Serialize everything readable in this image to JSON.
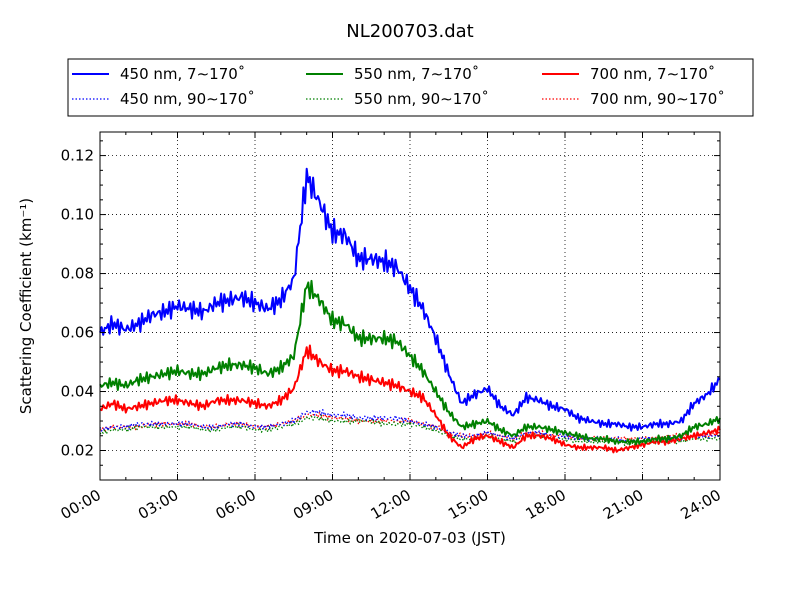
{
  "chart_data": {
    "type": "line",
    "title": "NL200703.dat",
    "xlabel": "Time on 2020-07-03 (JST)",
    "ylabel": "Scattering Coefficient (km⁻¹)",
    "xlim": [
      "00:00",
      "24:00"
    ],
    "ylim": [
      0.01,
      0.128
    ],
    "x_ticks": [
      "00:00",
      "03:00",
      "06:00",
      "09:00",
      "12:00",
      "15:00",
      "18:00",
      "21:00",
      "24:00"
    ],
    "y_ticks": [
      "0.02",
      "0.04",
      "0.06",
      "0.08",
      "0.10",
      "0.12"
    ],
    "grid": true,
    "legend_position": "top",
    "x": [
      "00:00",
      "00:30",
      "01:00",
      "01:30",
      "02:00",
      "02:30",
      "03:00",
      "03:30",
      "04:00",
      "04:30",
      "05:00",
      "05:30",
      "06:00",
      "06:30",
      "07:00",
      "07:30",
      "08:00",
      "08:30",
      "09:00",
      "09:30",
      "10:00",
      "10:30",
      "11:00",
      "11:30",
      "12:00",
      "12:30",
      "13:00",
      "13:30",
      "14:00",
      "14:30",
      "15:00",
      "15:30",
      "16:00",
      "16:30",
      "17:00",
      "17:30",
      "18:00",
      "18:30",
      "19:00",
      "19:30",
      "20:00",
      "20:30",
      "21:00",
      "21:30",
      "22:00",
      "22:30",
      "23:00",
      "23:30",
      "24:00"
    ],
    "series": [
      {
        "name": "450 nm, 7∼170˚",
        "color": "#0000ff",
        "style": "solid",
        "values": [
          0.06,
          0.063,
          0.061,
          0.063,
          0.066,
          0.067,
          0.069,
          0.068,
          0.067,
          0.07,
          0.071,
          0.072,
          0.07,
          0.068,
          0.071,
          0.078,
          0.113,
          0.104,
          0.094,
          0.093,
          0.085,
          0.085,
          0.084,
          0.082,
          0.075,
          0.068,
          0.058,
          0.046,
          0.036,
          0.039,
          0.041,
          0.035,
          0.032,
          0.038,
          0.037,
          0.035,
          0.034,
          0.031,
          0.03,
          0.029,
          0.029,
          0.028,
          0.028,
          0.029,
          0.029,
          0.03,
          0.036,
          0.039,
          0.044
        ]
      },
      {
        "name": "450 nm, 90∼170˚",
        "color": "#0000ff",
        "style": "dotted",
        "values": [
          0.027,
          0.028,
          0.028,
          0.029,
          0.029,
          0.029,
          0.029,
          0.029,
          0.028,
          0.028,
          0.029,
          0.029,
          0.028,
          0.028,
          0.029,
          0.03,
          0.033,
          0.033,
          0.032,
          0.032,
          0.031,
          0.031,
          0.031,
          0.031,
          0.03,
          0.029,
          0.028,
          0.026,
          0.025,
          0.025,
          0.026,
          0.025,
          0.024,
          0.026,
          0.026,
          0.025,
          0.025,
          0.024,
          0.024,
          0.024,
          0.024,
          0.023,
          0.024,
          0.024,
          0.024,
          0.024,
          0.025,
          0.025,
          0.025
        ]
      },
      {
        "name": "550 nm, 7∼170˚",
        "color": "#008000",
        "style": "solid",
        "values": [
          0.042,
          0.043,
          0.042,
          0.044,
          0.045,
          0.046,
          0.047,
          0.046,
          0.046,
          0.048,
          0.049,
          0.049,
          0.048,
          0.046,
          0.048,
          0.052,
          0.076,
          0.071,
          0.064,
          0.063,
          0.058,
          0.058,
          0.058,
          0.057,
          0.052,
          0.047,
          0.04,
          0.033,
          0.028,
          0.029,
          0.03,
          0.027,
          0.025,
          0.028,
          0.028,
          0.027,
          0.026,
          0.025,
          0.024,
          0.024,
          0.023,
          0.023,
          0.023,
          0.024,
          0.024,
          0.025,
          0.028,
          0.029,
          0.031
        ]
      },
      {
        "name": "550 nm, 90∼170˚",
        "color": "#008000",
        "style": "dotted",
        "values": [
          0.026,
          0.027,
          0.027,
          0.028,
          0.028,
          0.028,
          0.028,
          0.028,
          0.027,
          0.027,
          0.028,
          0.028,
          0.027,
          0.027,
          0.028,
          0.029,
          0.031,
          0.031,
          0.03,
          0.03,
          0.03,
          0.03,
          0.029,
          0.029,
          0.029,
          0.028,
          0.027,
          0.025,
          0.024,
          0.024,
          0.025,
          0.024,
          0.023,
          0.025,
          0.025,
          0.024,
          0.024,
          0.023,
          0.023,
          0.023,
          0.023,
          0.022,
          0.023,
          0.023,
          0.023,
          0.023,
          0.024,
          0.024,
          0.024
        ]
      },
      {
        "name": "700 nm, 7∼170˚",
        "color": "#ff0000",
        "style": "solid",
        "values": [
          0.034,
          0.036,
          0.034,
          0.035,
          0.036,
          0.037,
          0.037,
          0.036,
          0.035,
          0.037,
          0.037,
          0.037,
          0.036,
          0.035,
          0.037,
          0.041,
          0.054,
          0.05,
          0.047,
          0.047,
          0.045,
          0.044,
          0.043,
          0.042,
          0.04,
          0.038,
          0.032,
          0.025,
          0.021,
          0.024,
          0.025,
          0.023,
          0.021,
          0.025,
          0.025,
          0.024,
          0.022,
          0.021,
          0.021,
          0.021,
          0.02,
          0.021,
          0.022,
          0.023,
          0.023,
          0.024,
          0.025,
          0.026,
          0.027
        ]
      },
      {
        "name": "700 nm, 90∼170˚",
        "color": "#ff0000",
        "style": "dotted",
        "values": [
          0.027,
          0.028,
          0.028,
          0.028,
          0.029,
          0.029,
          0.029,
          0.029,
          0.028,
          0.028,
          0.029,
          0.029,
          0.028,
          0.028,
          0.029,
          0.03,
          0.032,
          0.032,
          0.031,
          0.031,
          0.03,
          0.03,
          0.03,
          0.03,
          0.03,
          0.029,
          0.028,
          0.026,
          0.025,
          0.025,
          0.026,
          0.025,
          0.024,
          0.026,
          0.026,
          0.025,
          0.025,
          0.024,
          0.024,
          0.024,
          0.024,
          0.024,
          0.024,
          0.024,
          0.025,
          0.025,
          0.025,
          0.025,
          0.026
        ]
      }
    ]
  }
}
